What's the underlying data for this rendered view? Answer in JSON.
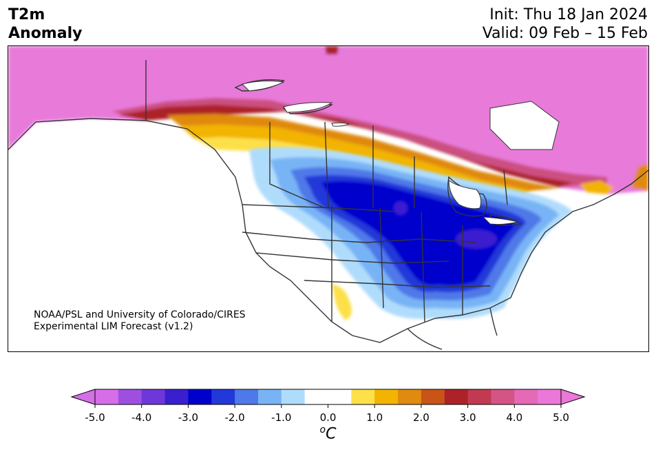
{
  "header": {
    "title_line1": "T2m",
    "title_line2": "Anomaly",
    "init_label": "Init: Thu 18 Jan 2024",
    "valid_label": "Valid: 09 Feb – 15 Feb"
  },
  "credit": {
    "line1": "NOAA/PSL and University of Colorado/CIRES",
    "line2": "Experimental LIM Forecast (v1.2)"
  },
  "colorbar": {
    "colors": [
      "#d66ee8",
      "#9f4fe0",
      "#6e37d9",
      "#3a1fcf",
      "#0000cc",
      "#2238d8",
      "#4f78e8",
      "#78b4f5",
      "#b0dcfc",
      "#ffffff",
      "#ffffff",
      "#fde04a",
      "#f2b400",
      "#e08a10",
      "#c85418",
      "#ac2228",
      "#c23a52",
      "#d45486",
      "#e46ab8",
      "#eb78d8"
    ],
    "extend_low_color": "#d66ee8",
    "extend_high_color": "#eb78d8",
    "ticks": [
      "-5.0",
      "-4.0",
      "-3.0",
      "-2.0",
      "-1.0",
      "0.0",
      "1.0",
      "2.0",
      "3.0",
      "4.0",
      "5.0"
    ],
    "unit_base": "C",
    "unit_sup": "o"
  },
  "map": {
    "region": "North America",
    "coast_color": "#333333",
    "anomaly_colors": {
      "warm_far_north": "#e87ada",
      "cold_core": "#0000cc"
    }
  }
}
